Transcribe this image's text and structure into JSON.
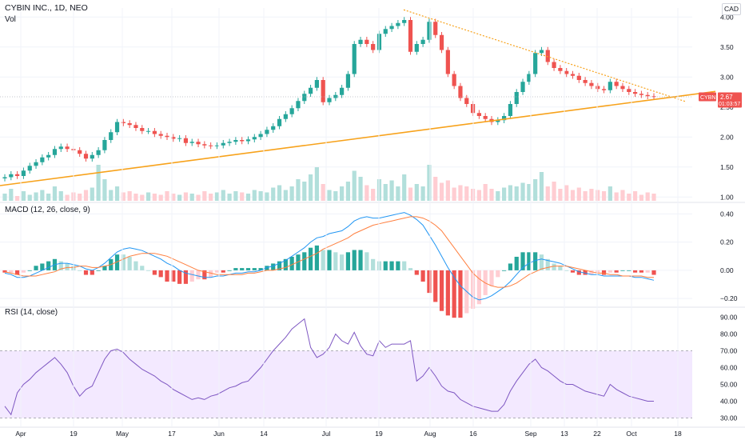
{
  "header": {
    "title": "CYBIN INC., 1D, NEO",
    "volume_label": "Vol",
    "currency_button": "CAD",
    "macd_label": "MACD (12, 26, close, 9)",
    "rsi_label": "RSI (14, close)"
  },
  "price_tag": {
    "symbol": "CYBN",
    "price": "2.67",
    "countdown": "01:03:57"
  },
  "colors": {
    "up": "#26a69a",
    "down": "#ef5350",
    "up_light": "#b2dfdb",
    "down_light": "#ffcdd2",
    "trendline": "#f7a21b",
    "macd_line": "#2196f3",
    "signal_line": "#ff7f3f",
    "rsi_line": "#7e57c2",
    "rsi_band": "#f3e9ff",
    "grid": "#f0f3fa",
    "axis_text": "#131722"
  },
  "chart_data": [
    {
      "type": "candlestick",
      "title": "CYBIN INC., 1D, NEO",
      "y_ticks": [
        "1.00",
        "1.50",
        "2.00",
        "2.50",
        "3.00",
        "3.50",
        "4.00"
      ],
      "ylim": [
        0.95,
        4.15
      ],
      "x_ticks": [
        "Apr",
        "19",
        "May",
        "17",
        "Jun",
        "14",
        "Jul",
        "19",
        "Aug",
        "16",
        "Sep",
        "13",
        "22",
        "Oct",
        "18"
      ],
      "last_price": 2.67,
      "ohlc_close": [
        1.33,
        1.38,
        1.35,
        1.44,
        1.52,
        1.58,
        1.66,
        1.7,
        1.8,
        1.84,
        1.8,
        1.78,
        1.72,
        1.64,
        1.7,
        1.78,
        1.95,
        2.08,
        2.25,
        2.23,
        2.2,
        2.15,
        2.1,
        2.1,
        2.05,
        2.02,
        2.0,
        1.97,
        1.98,
        1.9,
        1.92,
        1.88,
        1.86,
        1.85,
        1.86,
        1.9,
        1.92,
        1.95,
        1.93,
        1.96,
        2.0,
        2.05,
        2.12,
        2.18,
        2.3,
        2.38,
        2.48,
        2.6,
        2.72,
        2.82,
        2.95,
        2.58,
        2.65,
        2.7,
        2.82,
        3.05,
        3.55,
        3.62,
        3.55,
        3.45,
        3.72,
        3.8,
        3.85,
        3.9,
        3.95,
        3.42,
        3.55,
        3.62,
        3.92,
        3.7,
        3.45,
        3.05,
        2.85,
        2.65,
        2.55,
        2.4,
        2.35,
        2.3,
        2.25,
        2.28,
        2.35,
        2.55,
        2.75,
        2.92,
        3.05,
        3.4,
        3.45,
        3.25,
        3.15,
        3.1,
        3.05,
        3.02,
        2.95,
        2.9,
        2.85,
        2.8,
        2.78,
        2.92,
        2.85,
        2.8,
        2.75,
        2.72,
        2.7,
        2.68,
        2.67
      ],
      "volume": [
        6,
        10,
        4,
        8,
        5,
        7,
        9,
        6,
        12,
        8,
        5,
        7,
        6,
        9,
        11,
        30,
        18,
        9,
        12,
        7,
        8,
        6,
        5,
        7,
        6,
        5,
        8,
        6,
        5,
        7,
        6,
        5,
        8,
        6,
        7,
        9,
        6,
        8,
        7,
        6,
        9,
        8,
        7,
        11,
        13,
        9,
        12,
        18,
        16,
        22,
        28,
        14,
        9,
        8,
        12,
        16,
        25,
        20,
        13,
        10,
        18,
        14,
        17,
        12,
        22,
        11,
        14,
        12,
        30,
        20,
        15,
        17,
        11,
        13,
        12,
        10,
        9,
        14,
        10,
        8,
        11,
        13,
        12,
        15,
        14,
        18,
        24,
        12,
        16,
        10,
        13,
        9,
        11,
        8,
        10,
        9,
        8,
        12,
        7,
        9,
        6,
        8,
        5,
        7,
        6
      ]
    },
    {
      "type": "line+histogram",
      "title": "MACD (12, 26, close, 9)",
      "y_ticks": [
        "0.40",
        "0.20",
        "0.00",
        "−0.20"
      ],
      "ylim": [
        -0.25,
        0.47
      ],
      "macd": [
        -0.02,
        -0.03,
        -0.05,
        -0.05,
        -0.04,
        -0.02,
        0.0,
        0.02,
        0.04,
        0.05,
        0.05,
        0.04,
        0.03,
        0.01,
        0.0,
        0.02,
        0.05,
        0.09,
        0.13,
        0.15,
        0.16,
        0.15,
        0.14,
        0.12,
        0.1,
        0.08,
        0.05,
        0.03,
        0.0,
        -0.02,
        -0.03,
        -0.04,
        -0.05,
        -0.05,
        -0.04,
        -0.04,
        -0.03,
        -0.02,
        -0.02,
        -0.01,
        -0.01,
        0.0,
        0.02,
        0.03,
        0.05,
        0.07,
        0.1,
        0.13,
        0.16,
        0.2,
        0.23,
        0.24,
        0.26,
        0.27,
        0.28,
        0.31,
        0.35,
        0.37,
        0.38,
        0.37,
        0.37,
        0.38,
        0.39,
        0.4,
        0.41,
        0.39,
        0.36,
        0.32,
        0.25,
        0.18,
        0.1,
        0.02,
        -0.05,
        -0.11,
        -0.15,
        -0.19,
        -0.21,
        -0.2,
        -0.18,
        -0.15,
        -0.12,
        -0.08,
        -0.03,
        0.02,
        0.05,
        0.07,
        0.08,
        0.07,
        0.06,
        0.05,
        0.03,
        0.01,
        -0.01,
        -0.02,
        -0.03,
        -0.03,
        -0.04,
        -0.04,
        -0.04,
        -0.04,
        -0.04,
        -0.05,
        -0.05,
        -0.06,
        -0.07
      ],
      "signal": [
        -0.01,
        -0.02,
        -0.03,
        -0.04,
        -0.04,
        -0.04,
        -0.03,
        -0.02,
        -0.01,
        0.01,
        0.02,
        0.02,
        0.03,
        0.03,
        0.02,
        0.02,
        0.03,
        0.04,
        0.06,
        0.08,
        0.1,
        0.11,
        0.12,
        0.12,
        0.12,
        0.11,
        0.1,
        0.08,
        0.06,
        0.04,
        0.02,
        0.0,
        -0.01,
        -0.02,
        -0.03,
        -0.03,
        -0.03,
        -0.03,
        -0.03,
        -0.02,
        -0.02,
        -0.01,
        0.0,
        0.0,
        0.01,
        0.02,
        0.04,
        0.06,
        0.08,
        0.1,
        0.12,
        0.15,
        0.17,
        0.19,
        0.21,
        0.23,
        0.26,
        0.28,
        0.3,
        0.32,
        0.33,
        0.34,
        0.35,
        0.36,
        0.37,
        0.38,
        0.38,
        0.37,
        0.35,
        0.32,
        0.28,
        0.22,
        0.16,
        0.1,
        0.04,
        -0.02,
        -0.06,
        -0.09,
        -0.11,
        -0.12,
        -0.12,
        -0.11,
        -0.09,
        -0.06,
        -0.03,
        -0.01,
        0.01,
        0.02,
        0.03,
        0.03,
        0.03,
        0.02,
        0.01,
        0.0,
        -0.01,
        -0.02,
        -0.02,
        -0.03,
        -0.03,
        -0.04,
        -0.04,
        -0.04,
        -0.04,
        -0.05,
        -0.05
      ]
    },
    {
      "type": "line",
      "title": "RSI (14, close)",
      "y_ticks": [
        "90.00",
        "80.00",
        "70.00",
        "60.00",
        "50.00",
        "40.00",
        "30.00"
      ],
      "ylim": [
        25,
        95
      ],
      "bands": [
        30,
        70
      ],
      "rsi": [
        37,
        32,
        45,
        50,
        53,
        57,
        60,
        63,
        66,
        62,
        57,
        49,
        43,
        47,
        49,
        57,
        65,
        70,
        71,
        69,
        65,
        62,
        59,
        57,
        55,
        52,
        50,
        47,
        45,
        43,
        41,
        42,
        41,
        43,
        44,
        46,
        48,
        49,
        51,
        52,
        56,
        60,
        65,
        70,
        74,
        78,
        83,
        86,
        89,
        72,
        66,
        68,
        72,
        80,
        76,
        74,
        81,
        73,
        68,
        67,
        76,
        72,
        74,
        74,
        74,
        76,
        52,
        55,
        60,
        55,
        49,
        46,
        45,
        41,
        39,
        37,
        36,
        35,
        34,
        34,
        38,
        46,
        52,
        57,
        62,
        65,
        60,
        58,
        55,
        52,
        50,
        50,
        48,
        46,
        45,
        44,
        43,
        50,
        47,
        45,
        43,
        42,
        41,
        40,
        40
      ]
    }
  ]
}
